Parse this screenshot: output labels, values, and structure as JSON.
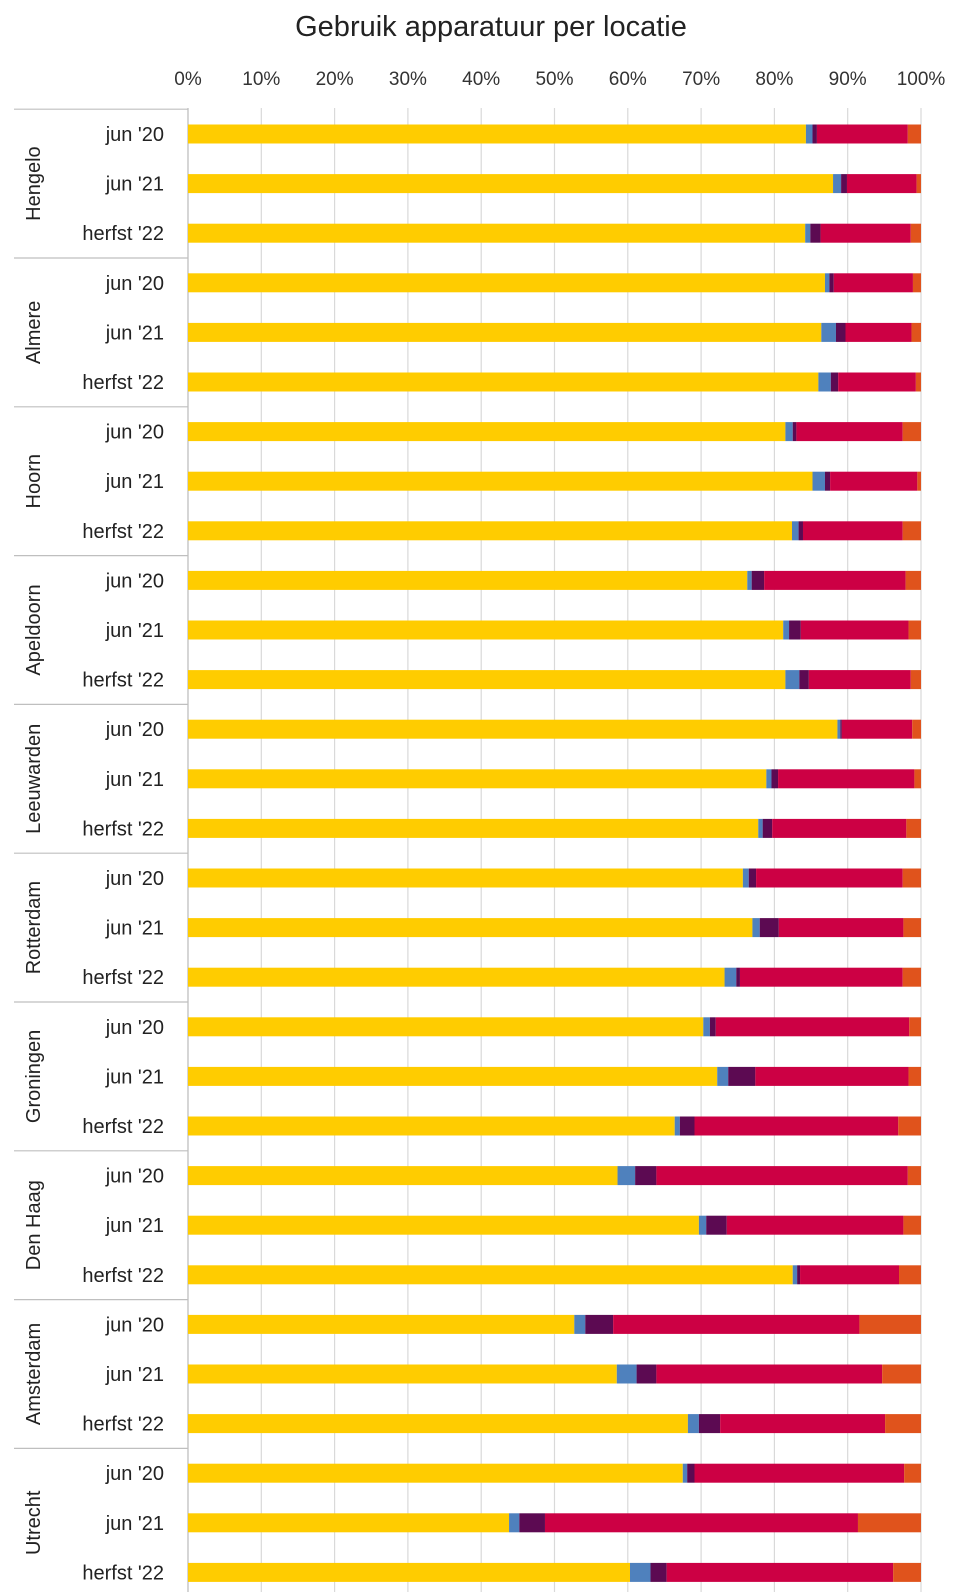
{
  "chart_data": {
    "type": "bar",
    "orientation": "horizontal",
    "stacked": true,
    "normalized_percent": true,
    "title": "Gebruik apparatuur per locatie",
    "xlabel": "",
    "ylabel": "",
    "xlim": [
      0,
      100
    ],
    "x_ticks": [
      "0%",
      "10%",
      "20%",
      "30%",
      "40%",
      "50%",
      "60%",
      "70%",
      "80%",
      "90%",
      "100%"
    ],
    "x_axis_position": "top",
    "grid": true,
    "legend": "none",
    "series_colors": [
      "#ffcc00",
      "#4f81bd",
      "#5c0a52",
      "#cc0044",
      "#e0531c"
    ],
    "groups": [
      {
        "name": "Hengelo",
        "rows": [
          {
            "label": "jun '20",
            "values": [
              84.3,
              0.9,
              0.6,
              12.4,
              1.8
            ]
          },
          {
            "label": "jun '21",
            "values": [
              88.0,
              1.1,
              0.8,
              9.5,
              0.6
            ]
          },
          {
            "label": "herfst '22",
            "values": [
              84.2,
              0.7,
              1.4,
              12.3,
              1.4
            ]
          }
        ]
      },
      {
        "name": "Almere",
        "rows": [
          {
            "label": "jun '20",
            "values": [
              86.9,
              0.6,
              0.6,
              10.8,
              1.1
            ]
          },
          {
            "label": "jun '21",
            "values": [
              86.4,
              2.0,
              1.3,
              9.0,
              1.3
            ]
          },
          {
            "label": "herfst '22",
            "values": [
              86.0,
              1.7,
              1.0,
              10.6,
              0.7
            ]
          }
        ]
      },
      {
        "name": "Hoorn",
        "rows": [
          {
            "label": "jun '20",
            "values": [
              81.5,
              1.0,
              0.5,
              14.5,
              2.5
            ]
          },
          {
            "label": "jun '21",
            "values": [
              85.2,
              1.7,
              0.7,
              11.9,
              0.5
            ]
          },
          {
            "label": "herfst '22",
            "values": [
              82.4,
              0.9,
              0.6,
              13.6,
              2.5
            ]
          }
        ]
      },
      {
        "name": "Apeldoorn",
        "rows": [
          {
            "label": "jun '20",
            "values": [
              76.3,
              0.6,
              1.7,
              19.3,
              2.1
            ]
          },
          {
            "label": "jun '21",
            "values": [
              81.2,
              0.8,
              1.6,
              14.7,
              1.7
            ]
          },
          {
            "label": "herfst '22",
            "values": [
              81.5,
              1.9,
              1.3,
              13.9,
              1.4
            ]
          }
        ]
      },
      {
        "name": "Leeuwarden",
        "rows": [
          {
            "label": "jun '20",
            "values": [
              88.6,
              0.4,
              0.2,
              9.6,
              1.2
            ]
          },
          {
            "label": "jun '21",
            "values": [
              78.9,
              0.7,
              0.9,
              18.6,
              0.9
            ]
          },
          {
            "label": "herfst '22",
            "values": [
              77.8,
              0.6,
              1.3,
              18.3,
              2.0
            ]
          }
        ]
      },
      {
        "name": "Rotterdam",
        "rows": [
          {
            "label": "jun '20",
            "values": [
              75.7,
              0.8,
              1.0,
              20.0,
              2.5
            ]
          },
          {
            "label": "jun '21",
            "values": [
              77.0,
              1.0,
              2.6,
              17.0,
              2.4
            ]
          },
          {
            "label": "herfst '22",
            "values": [
              73.2,
              1.6,
              0.5,
              22.2,
              2.5
            ]
          }
        ]
      },
      {
        "name": "Groningen",
        "rows": [
          {
            "label": "jun '20",
            "values": [
              70.3,
              0.9,
              0.8,
              26.4,
              1.6
            ]
          },
          {
            "label": "jun '21",
            "values": [
              72.2,
              1.5,
              3.7,
              20.9,
              1.7
            ]
          },
          {
            "label": "herfst '22",
            "values": [
              66.4,
              0.7,
              2.0,
              27.8,
              3.1
            ]
          }
        ]
      },
      {
        "name": "Den Haag",
        "rows": [
          {
            "label": "jun '20",
            "values": [
              58.6,
              2.4,
              2.9,
              34.3,
              1.8
            ]
          },
          {
            "label": "jun '21",
            "values": [
              69.7,
              1.0,
              2.8,
              24.1,
              2.4
            ]
          },
          {
            "label": "herfst '22",
            "values": [
              82.5,
              0.6,
              0.4,
              13.5,
              3.0
            ]
          }
        ]
      },
      {
        "name": "Amsterdam",
        "rows": [
          {
            "label": "jun '20",
            "values": [
              52.7,
              1.5,
              3.8,
              33.6,
              8.4
            ]
          },
          {
            "label": "jun '21",
            "values": [
              58.5,
              2.7,
              2.7,
              30.8,
              5.3
            ]
          },
          {
            "label": "herfst '22",
            "values": [
              68.2,
              1.5,
              2.9,
              22.5,
              4.9
            ]
          }
        ]
      },
      {
        "name": "Utrecht",
        "rows": [
          {
            "label": "jun '20",
            "values": [
              67.5,
              0.6,
              1.0,
              28.6,
              2.3
            ]
          },
          {
            "label": "jun '21",
            "values": [
              43.8,
              1.4,
              3.5,
              42.7,
              8.6
            ]
          },
          {
            "label": "herfst '22",
            "values": [
              60.3,
              2.8,
              2.2,
              30.9,
              3.8
            ]
          }
        ]
      }
    ]
  }
}
